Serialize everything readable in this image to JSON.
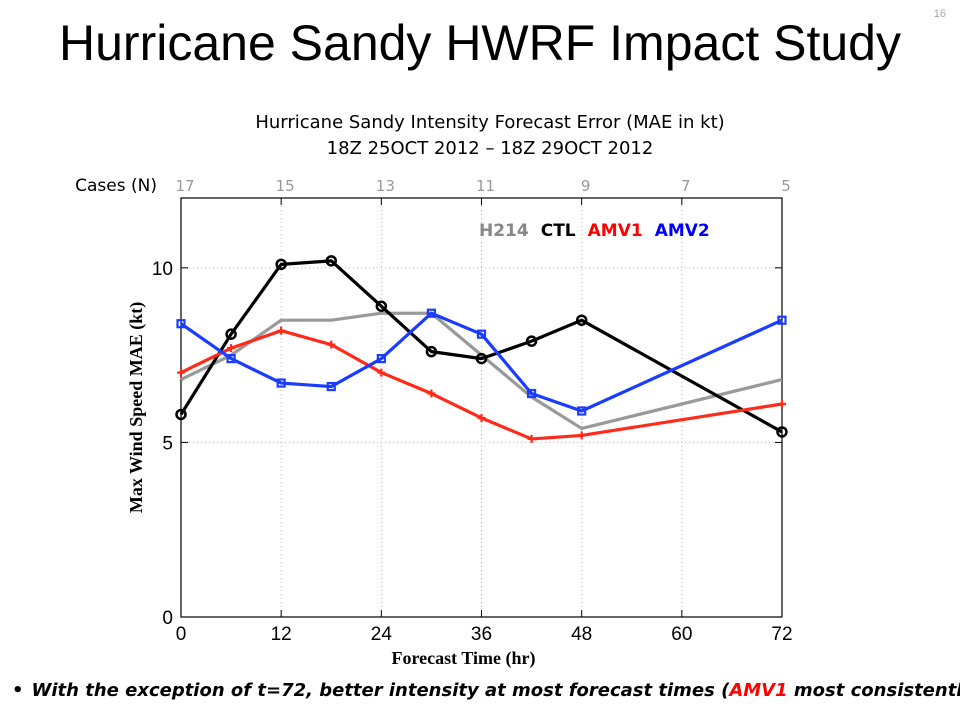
{
  "slide": {
    "title": "Hurricane Sandy HWRF Impact Study",
    "number": "16"
  },
  "chart_data": {
    "type": "line",
    "title": "Hurricane Sandy Intensity Forecast Error (MAE in kt)",
    "subtitle": "18Z 25OCT 2012 – 18Z 29OCT 2012",
    "xlabel": "Forecast Time (hr)",
    "ylabel": "Max Wind Speed MAE (kt)",
    "xlim": [
      0,
      72
    ],
    "ylim": [
      0,
      12
    ],
    "xticks": [
      0,
      12,
      24,
      36,
      48,
      60,
      72
    ],
    "yticks": [
      0,
      5,
      10
    ],
    "grid": true,
    "cases_label": "Cases (N)",
    "cases": [
      {
        "x": 0,
        "n": "17"
      },
      {
        "x": 12,
        "n": "15"
      },
      {
        "x": 24,
        "n": "13"
      },
      {
        "x": 36,
        "n": "11"
      },
      {
        "x": 48,
        "n": "9"
      },
      {
        "x": 60,
        "n": "7"
      },
      {
        "x": 72,
        "n": "5"
      }
    ],
    "legend_placement": "top-right",
    "series": [
      {
        "name": "H214",
        "color": "#999999",
        "marker": "none",
        "x": [
          0,
          6,
          12,
          18,
          24,
          30,
          36,
          42,
          48,
          72
        ],
        "y": [
          6.8,
          7.5,
          8.5,
          8.5,
          8.7,
          8.7,
          7.5,
          6.3,
          5.4,
          6.8
        ]
      },
      {
        "name": "CTL",
        "color": "#000000",
        "marker": "circle",
        "x": [
          0,
          6,
          12,
          18,
          24,
          30,
          36,
          42,
          48,
          72
        ],
        "y": [
          5.8,
          8.1,
          10.1,
          10.2,
          8.9,
          7.6,
          7.4,
          7.9,
          8.5,
          5.3
        ]
      },
      {
        "name": "AMV1",
        "color": "#ff2a1a",
        "marker": "plus",
        "x": [
          0,
          6,
          12,
          18,
          24,
          30,
          36,
          42,
          48,
          72
        ],
        "y": [
          7.0,
          7.7,
          8.2,
          7.8,
          7.0,
          6.4,
          5.7,
          5.1,
          5.2,
          6.1
        ]
      },
      {
        "name": "AMV2",
        "color": "#1a3cff",
        "marker": "square",
        "x": [
          0,
          6,
          12,
          18,
          24,
          30,
          36,
          42,
          48,
          72
        ],
        "y": [
          8.4,
          7.4,
          6.7,
          6.6,
          7.4,
          8.7,
          8.1,
          6.4,
          5.9,
          8.5
        ]
      }
    ]
  },
  "bullet": {
    "before": "With the exception of t=72, better intensity at most forecast times (",
    "highlight": "AMV1",
    "after": " most consistently)"
  }
}
